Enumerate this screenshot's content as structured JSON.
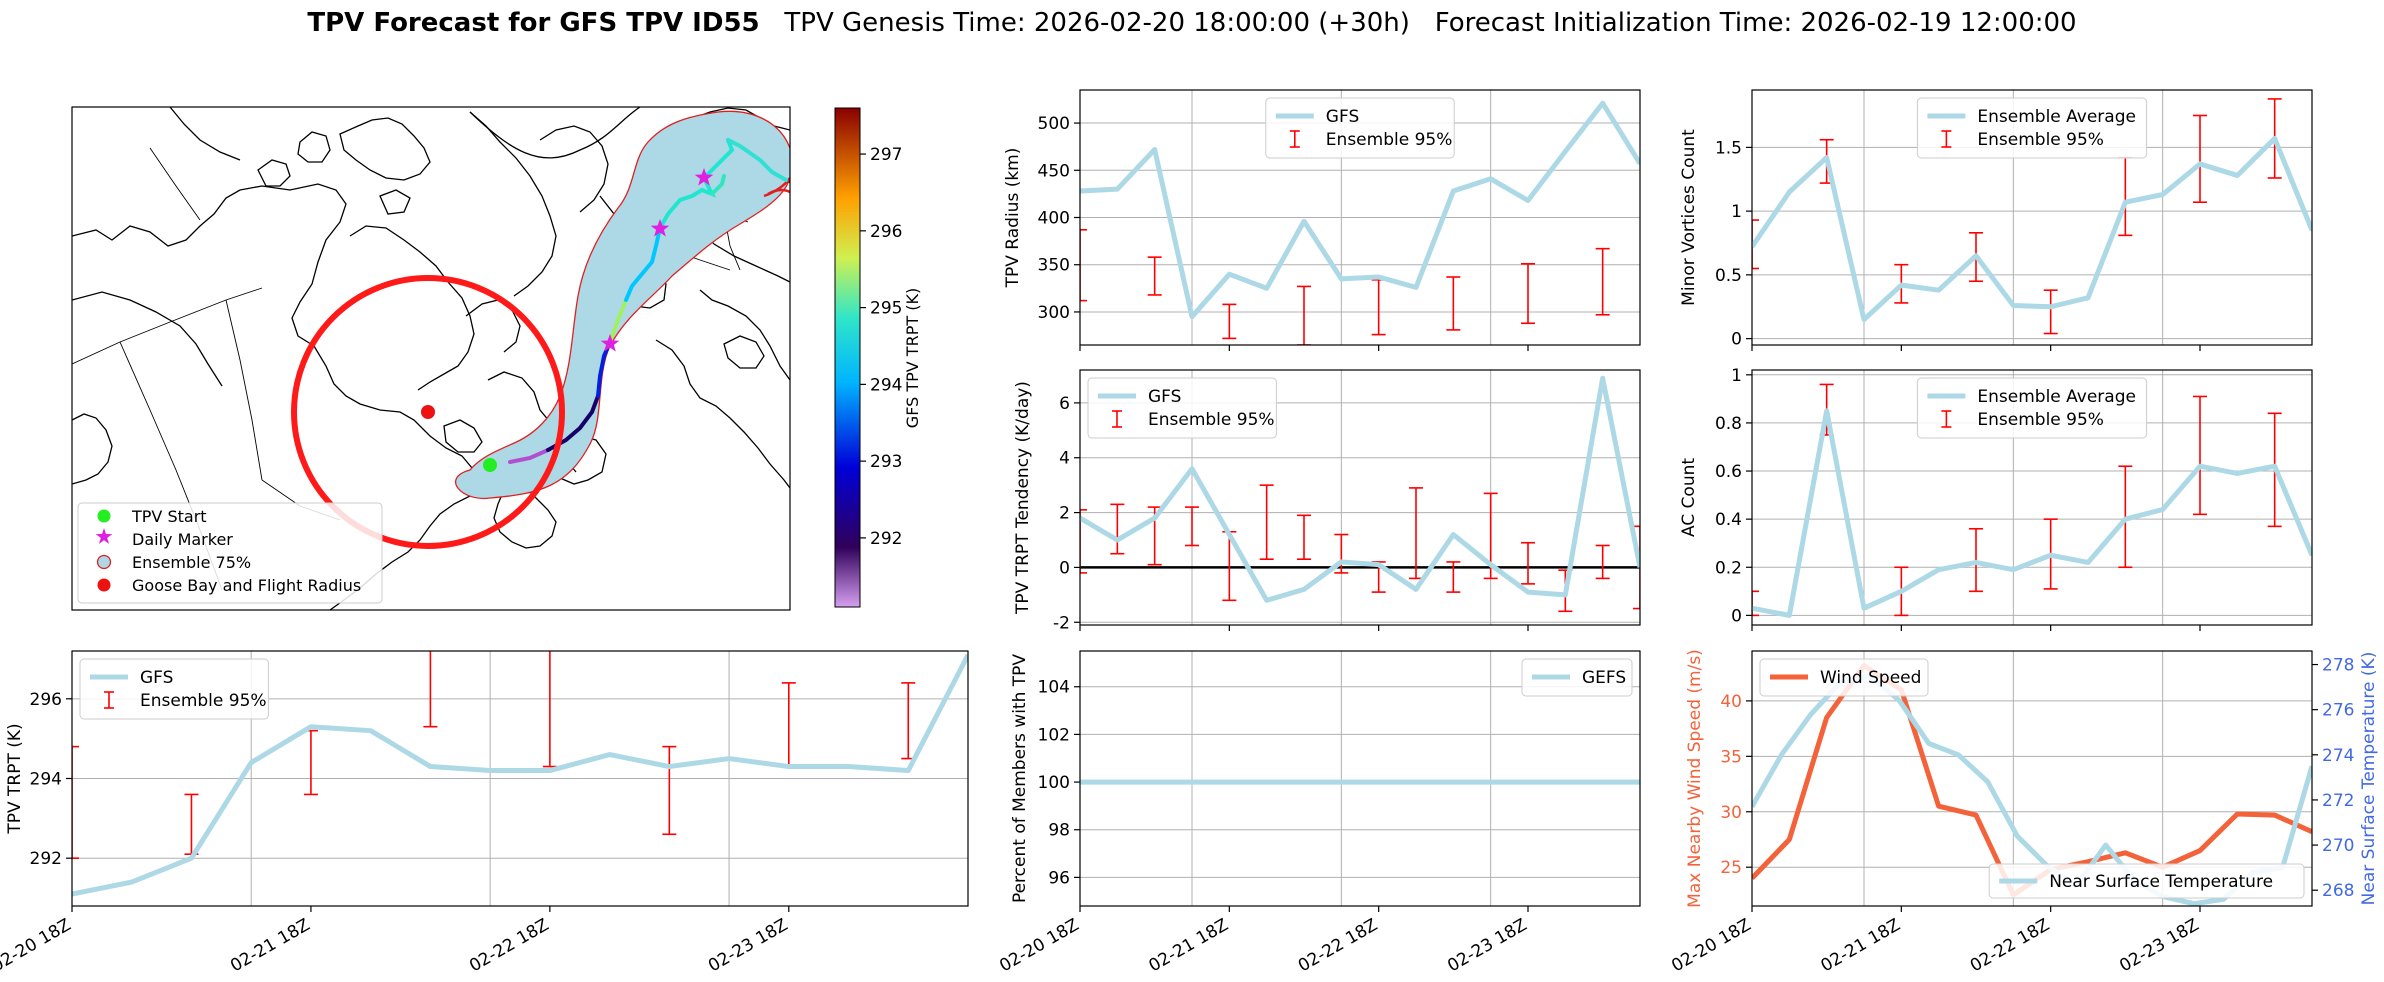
{
  "title": {
    "bold": "TPV Forecast for GFS TPV ID55",
    "rest": "   TPV Genesis Time: 2026-02-20 18:00:00 (+30h)   Forecast Initialization Time: 2026-02-19 12:00:00"
  },
  "colors": {
    "gfs": "#add8e6",
    "ens": "#ff0000",
    "wind": "#f4623a",
    "temp_axis": "#4169e1",
    "wind_axis": "#f4623a",
    "zero_line": "#000000",
    "grid": "#b0b0b0",
    "flight_circle": "#ff1a1a",
    "track_fill": "#add8e6",
    "track_edge": "#e02020"
  },
  "map": {
    "legend": [
      "TPV Start",
      "Daily Marker",
      "Ensemble 75%",
      "Goose Bay and Flight Radius"
    ],
    "colorbar": {
      "label": "GFS TPV TRPT (K)",
      "ticks": [
        292,
        293,
        294,
        295,
        296,
        297
      ],
      "range": [
        291.1,
        297.6
      ]
    }
  },
  "time_ticks": [
    "02-20 18Z",
    "02-21 18Z",
    "02-22 18Z",
    "02-23 18Z"
  ],
  "chart_data": [
    {
      "id": "radius",
      "type": "line",
      "ylabel": "TPV Radius (km)",
      "ylim": [
        265,
        535
      ],
      "yticks": [
        300,
        350,
        400,
        450,
        500
      ],
      "series": [
        {
          "name": "GFS",
          "values": [
            428,
            430,
            472,
            295,
            340,
            325,
            396,
            335,
            337,
            326,
            428,
            441,
            418,
            470,
            521,
            457
          ]
        }
      ],
      "errorbars": {
        "name": "Ensemble 95%",
        "points": [
          [
            0,
            312,
            387
          ],
          [
            2,
            318,
            358
          ],
          [
            4,
            272,
            308
          ],
          [
            6,
            265,
            327
          ],
          [
            8,
            276,
            334
          ],
          [
            10,
            281,
            337
          ],
          [
            12,
            288,
            351
          ],
          [
            14,
            297,
            367
          ]
        ]
      },
      "legend": [
        "GFS",
        "Ensemble 95%"
      ],
      "legend_loc": "upper center"
    },
    {
      "id": "tendency",
      "type": "line",
      "ylabel": "TPV TRPT Tendency (K/day)",
      "ylim": [
        -2.1,
        7.2
      ],
      "yticks": [
        -2,
        0,
        2,
        4,
        6
      ],
      "series": [
        {
          "name": "GFS",
          "values": [
            1.8,
            1.0,
            1.8,
            3.6,
            1.2,
            -1.2,
            -0.8,
            0.2,
            0.1,
            -0.8,
            1.2,
            0.1,
            -0.9,
            -1.0,
            6.9,
            0.0
          ]
        }
      ],
      "errorbars": {
        "name": "Ensemble 95%",
        "points": [
          [
            0,
            -0.2,
            2.1
          ],
          [
            1,
            0.5,
            2.3
          ],
          [
            2,
            0.1,
            2.2
          ],
          [
            3,
            0.8,
            2.2
          ],
          [
            4,
            -1.2,
            1.3
          ],
          [
            5,
            0.3,
            3.0
          ],
          [
            6,
            0.3,
            1.9
          ],
          [
            7,
            -0.2,
            1.2
          ],
          [
            8,
            -0.9,
            0.2
          ],
          [
            9,
            -0.4,
            2.9
          ],
          [
            10,
            -0.9,
            0.2
          ],
          [
            11,
            -0.4,
            2.7
          ],
          [
            12,
            -0.6,
            0.9
          ],
          [
            13,
            -1.6,
            -0.1
          ],
          [
            14,
            -0.4,
            0.8
          ],
          [
            15,
            -1.5,
            1.5
          ]
        ]
      },
      "zero_line": true,
      "legend": [
        "GFS",
        "Ensemble 95%"
      ],
      "legend_loc": "upper left"
    },
    {
      "id": "trpt",
      "type": "line",
      "ylabel": "TPV TRPT (K)",
      "ylim": [
        290.8,
        297.2
      ],
      "yticks": [
        292,
        294,
        296
      ],
      "series": [
        {
          "name": "GFS",
          "values": [
            291.1,
            291.4,
            292.0,
            294.4,
            295.3,
            295.2,
            294.3,
            294.2,
            294.2,
            294.6,
            294.3,
            294.5,
            294.3,
            294.3,
            294.2,
            297.1
          ]
        }
      ],
      "errorbars": {
        "name": "Ensemble 95%",
        "points": [
          [
            0,
            292.0,
            294.8
          ],
          [
            2,
            292.1,
            293.6
          ],
          [
            4,
            293.6,
            295.2
          ],
          [
            6,
            295.3,
            297.5
          ],
          [
            8,
            294.3,
            297.4
          ],
          [
            10,
            292.6,
            294.8
          ],
          [
            12,
            294.3,
            296.4
          ],
          [
            14,
            294.5,
            296.4
          ]
        ]
      },
      "legend": [
        "GFS",
        "Ensemble 95%"
      ],
      "legend_loc": "upper left"
    },
    {
      "id": "percent",
      "type": "line",
      "ylabel": "Percent of Members with TPV",
      "ylim": [
        94.8,
        105.5
      ],
      "yticks": [
        96,
        98,
        100,
        102,
        104
      ],
      "series": [
        {
          "name": "GEFS",
          "values": [
            100,
            100,
            100,
            100,
            100,
            100,
            100,
            100,
            100,
            100,
            100,
            100,
            100,
            100,
            100,
            100
          ]
        }
      ],
      "legend": [
        "GEFS"
      ],
      "legend_loc": "upper right"
    },
    {
      "id": "minor",
      "type": "line",
      "ylabel": "Minor Vortices Count",
      "ylim": [
        -0.05,
        1.95
      ],
      "yticks": [
        0.0,
        0.5,
        1.0,
        1.5
      ],
      "series": [
        {
          "name": "Ensemble Average",
          "values": [
            0.72,
            1.15,
            1.42,
            0.15,
            0.42,
            0.38,
            0.65,
            0.26,
            0.25,
            0.32,
            1.07,
            1.13,
            1.37,
            1.28,
            1.57,
            0.85
          ]
        }
      ],
      "errorbars": {
        "name": "Ensemble 95%",
        "points": [
          [
            0,
            0.55,
            0.93
          ],
          [
            2,
            1.22,
            1.56
          ],
          [
            4,
            0.28,
            0.58
          ],
          [
            6,
            0.45,
            0.83
          ],
          [
            8,
            0.04,
            0.38
          ],
          [
            10,
            0.81,
            1.42
          ],
          [
            12,
            1.07,
            1.75
          ],
          [
            14,
            1.26,
            1.88
          ]
        ]
      },
      "legend": [
        "Ensemble Average",
        "Ensemble 95%"
      ],
      "legend_loc": "upper center"
    },
    {
      "id": "ac",
      "type": "line",
      "ylabel": "AC Count",
      "ylim": [
        -0.04,
        1.02
      ],
      "yticks": [
        0.0,
        0.2,
        0.4,
        0.6,
        0.8,
        1.0
      ],
      "series": [
        {
          "name": "Ensemble Average",
          "values": [
            0.03,
            0.0,
            0.85,
            0.03,
            0.1,
            0.19,
            0.22,
            0.19,
            0.25,
            0.22,
            0.4,
            0.44,
            0.62,
            0.59,
            0.62,
            0.25
          ]
        }
      ],
      "errorbars": {
        "name": "Ensemble 95%",
        "points": [
          [
            0,
            0.0,
            0.1
          ],
          [
            2,
            0.75,
            0.96
          ],
          [
            4,
            0.0,
            0.2
          ],
          [
            6,
            0.1,
            0.36
          ],
          [
            8,
            0.11,
            0.4
          ],
          [
            10,
            0.2,
            0.62
          ],
          [
            12,
            0.42,
            0.91
          ],
          [
            14,
            0.37,
            0.84
          ]
        ]
      },
      "legend": [
        "Ensemble Average",
        "Ensemble 95%"
      ],
      "legend_loc": "upper center"
    },
    {
      "id": "wind",
      "type": "line",
      "ylabel": "Max Nearby Wind Speed (m/s)",
      "ylabel_right": "Near Surface Temperature (K)",
      "ylim": [
        21.5,
        44.5
      ],
      "yticks": [
        25,
        30,
        35,
        40
      ],
      "ylim_right": [
        267.3,
        278.6
      ],
      "yticks_right": [
        268,
        270,
        272,
        274,
        276,
        278
      ],
      "series": [
        {
          "name": "Wind Speed",
          "values": [
            24.0,
            27.5,
            38.5,
            43.2,
            41.0,
            30.5,
            29.7,
            22.5,
            24.8,
            25.5,
            26.3,
            25.0,
            26.5,
            29.8,
            29.7,
            28.2
          ]
        },
        {
          "name": "Near Surface Temperature",
          "axis": "right",
          "values": [
            271.7,
            274.0,
            275.8,
            277.2,
            277.5,
            276.4,
            274.5,
            274.0,
            272.8,
            270.4,
            269.1,
            268.2,
            270.0,
            268.4,
            267.7,
            267.4,
            267.6,
            268.8,
            269.0,
            273.5
          ]
        }
      ],
      "legend": [
        "Wind Speed"
      ],
      "legend2": [
        "Near Surface Temperature"
      ],
      "legend_loc": "upper left"
    }
  ]
}
